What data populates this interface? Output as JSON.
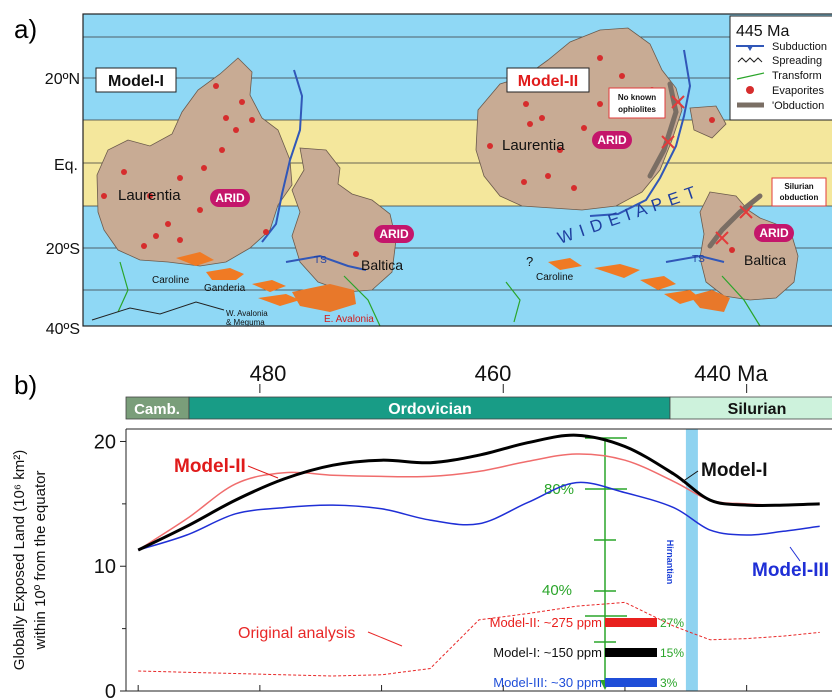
{
  "panel_a": {
    "panel_label": "a)",
    "lat_labels": [
      "20ºN",
      "Eq.",
      "20ºS",
      "40ºS"
    ],
    "model_1_label": "Model-I",
    "model_2_label": "Model-II",
    "left_map": {
      "laurentia": "Laurentia",
      "arid_laurentia": "ARID",
      "arid_baltica": "ARID",
      "baltica": "Baltica",
      "caroline": "Caroline",
      "ganderia": "Ganderia",
      "ts": "TS",
      "w_avalonia_1": "W. Avalonia",
      "w_avalonia_2": "& Meguma",
      "e_avalonia": "E. Avalonia"
    },
    "right_map": {
      "laurentia": "Laurentia",
      "arid_laurentia": "ARID",
      "arid_baltica": "ARID",
      "baltica": "Baltica",
      "caroline": "Caroline",
      "question": "?",
      "ts": "TS",
      "wide_iapetus": "W I D E   I A P E T",
      "no_ophiolites_1": "No known",
      "no_ophiolites_2": "ophiolites",
      "silurian_1": "Silurian",
      "silurian_2": "obduction"
    },
    "legend": {
      "age": "445 Ma",
      "subduction": "Subduction",
      "spreading": "Spreading",
      "transform": "Transform",
      "evaporites": "Evaporites",
      "obduction": "'Obduction"
    },
    "colors": {
      "ocean": "#8fd8f5",
      "arid_band": "#f4e79c",
      "land": "#c8ab94",
      "arid_badge": "#c4166b",
      "evaporite": "#d62d2d",
      "avalonia": "#f07a24",
      "subduction": "#3157b8",
      "transform": "#2aa52a",
      "obduction": "#7a6e64"
    }
  },
  "panel_b": {
    "panel_label": "b)",
    "age_ticks": [
      "480",
      "460",
      "440 Ma"
    ],
    "periods": [
      "Camb.",
      "Ordovician",
      "Silurian"
    ],
    "period_colors": [
      "#7a9e7a",
      "#189c86",
      "#cdf2dc"
    ],
    "ylabel_line1": "Globally Exposed Land (10⁶ km²)",
    "ylabel_line2": "within 10º from  the equator",
    "hirnantian": "Hirnantian",
    "pct_80": "80%",
    "pct_40": "40%",
    "original_analysis": "Original analysis",
    "series_labels": {
      "model_1": "Model-I",
      "model_2": "Model-II",
      "model_3": "Model-III"
    },
    "ppm": {
      "model_2": "Model-II:  ~275 ppm",
      "model_1": "Model-I: ~150 ppm",
      "model_3": "Model-III: ~30 ppm"
    },
    "ppm_pct": [
      "27%",
      "15%",
      "3%"
    ]
  },
  "chart_data": {
    "type": "line",
    "xlabel": "",
    "ylabel": "Globally Exposed Land (10⁶ km²) within 10º from  the equator",
    "xlim": [
      491,
      432
    ],
    "ylim": [
      0,
      21
    ],
    "yticks": [
      0,
      10,
      20
    ],
    "xticks": [
      480,
      460,
      440
    ],
    "x": [
      490,
      486,
      482,
      478,
      474,
      470,
      466,
      462,
      458,
      454,
      450,
      446,
      443,
      440,
      437,
      434
    ],
    "series": [
      {
        "name": "Model-I",
        "color": "#000000",
        "values": [
          11.3,
          13.2,
          15.3,
          17.0,
          18.1,
          18.5,
          18.3,
          18.9,
          19.9,
          20.5,
          19.6,
          17.4,
          15.3,
          14.9,
          14.9,
          15.0
        ]
      },
      {
        "name": "Model-II",
        "color": "#f06d6d",
        "values": [
          11.3,
          13.8,
          16.6,
          17.5,
          17.3,
          17.2,
          17.2,
          17.6,
          18.4,
          19.0,
          18.5,
          16.8,
          15.3,
          15.0,
          14.9,
          15.0
        ]
      },
      {
        "name": "Model-III",
        "color": "#1f2fd6",
        "values": [
          11.3,
          12.5,
          14.2,
          14.7,
          14.9,
          14.6,
          13.7,
          13.4,
          15.1,
          16.7,
          15.9,
          14.7,
          12.9,
          12.5,
          12.8,
          13.2
        ]
      },
      {
        "name": "Original analysis",
        "color": "#e82828",
        "dash": true,
        "values": [
          1.6,
          1.5,
          1.4,
          1.3,
          1.2,
          1.3,
          1.8,
          5.7,
          6.2,
          6.8,
          7.1,
          5.2,
          4.1,
          4.2,
          4.4,
          4.7
        ]
      }
    ],
    "co2_bars": [
      {
        "label": "Model-II: ~275 ppm",
        "percent": 27,
        "color": "#e8201e"
      },
      {
        "label": "Model-I: ~150 ppm",
        "percent": 15,
        "color": "#000000"
      },
      {
        "label": "Model-III: ~30 ppm",
        "percent": 3,
        "color": "#1f4ed8"
      }
    ],
    "co2_scale_ticks": [
      "80%",
      "40%"
    ],
    "hirnantian_age": 444.5
  }
}
